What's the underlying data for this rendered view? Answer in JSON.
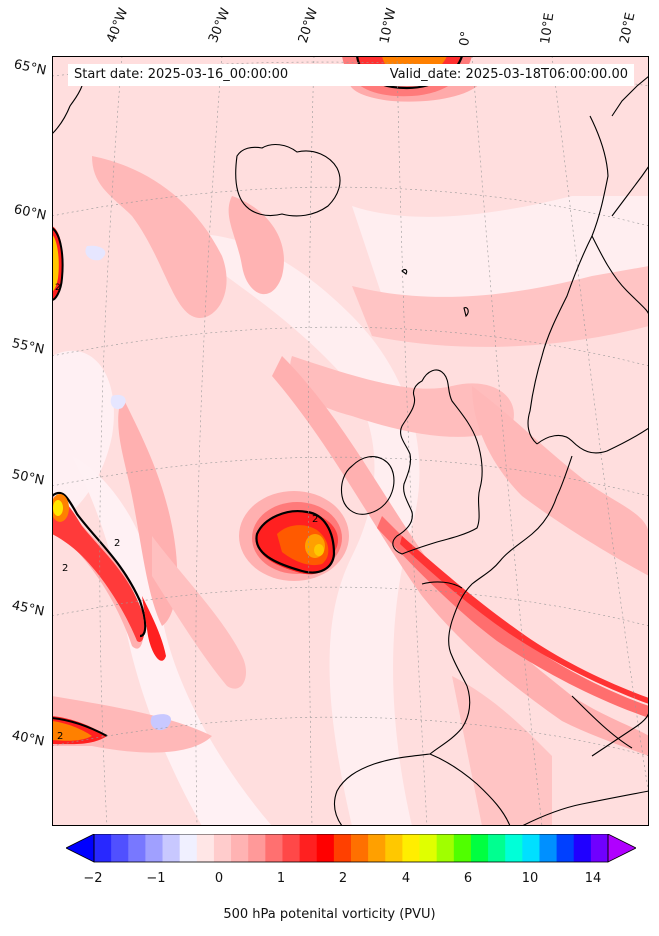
{
  "map": {
    "start_date": "Start date: 2025-03-16_00:00:00",
    "valid_date": "Valid_date: 2025-03-18T06:00:00.00",
    "lon_labels": [
      "40°W",
      "30°W",
      "20°W",
      "10°W",
      "0°",
      "10°E",
      "20°E"
    ],
    "lat_labels": [
      "65°N",
      "60°N",
      "55°N",
      "50°N",
      "45°N",
      "40°N"
    ],
    "contour_label": "2",
    "projection": "conic",
    "gridlines": true,
    "variable": "500 hPa potential vorticity"
  },
  "colorbar": {
    "label": "500 hPa potenital vorticity (PVU)",
    "ticks": [
      "−2",
      "−1",
      "0",
      "1",
      "2",
      "4",
      "6",
      "10",
      "14"
    ],
    "colors": [
      "#0000ff",
      "#2828ff",
      "#5050ff",
      "#7878ff",
      "#a0a0ff",
      "#c8c8ff",
      "#f0f0ff",
      "#ffe6e6",
      "#ffcccc",
      "#ffb3b3",
      "#ff9999",
      "#ff7070",
      "#ff4848",
      "#ff2020",
      "#ff0000",
      "#ff4000",
      "#ff7000",
      "#ffa000",
      "#ffc800",
      "#ffee00",
      "#e0ff00",
      "#a0ff00",
      "#50ff00",
      "#00ff40",
      "#00ff90",
      "#00ffd8",
      "#00e0ff",
      "#0090ff",
      "#0040ff",
      "#2000ff",
      "#7000ff",
      "#b000ff"
    ],
    "extend": "both"
  }
}
